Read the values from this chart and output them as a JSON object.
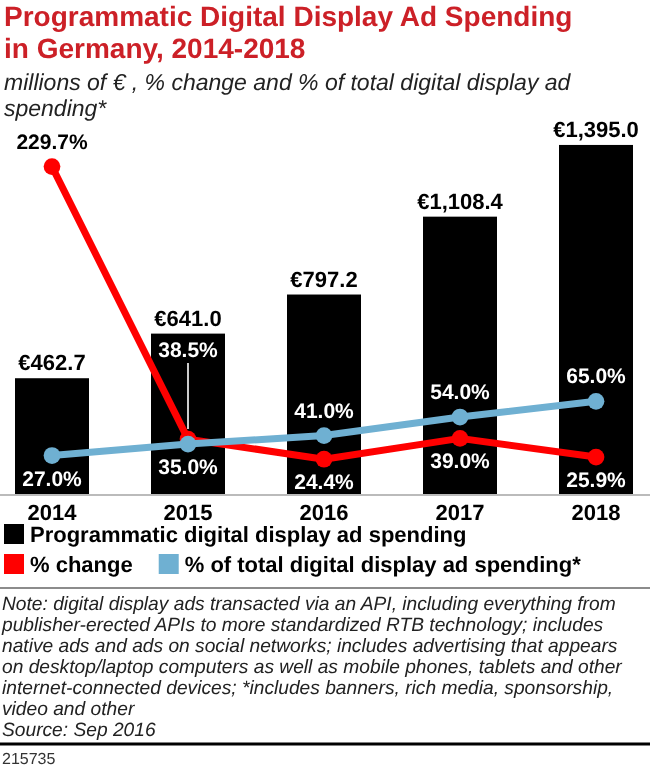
{
  "chart_data": {
    "type": "bar",
    "title": "Programmatic Digital Display Ad Spending in Germany, 2014-2018",
    "subtitle": "millions of € , % change and % of total digital display ad spending*",
    "categories": [
      "2014",
      "2015",
      "2016",
      "2017",
      "2018"
    ],
    "series": [
      {
        "name": "Programmatic digital display ad spending",
        "color": "#000000",
        "values": [
          462.7,
          641.0,
          797.2,
          1108.4,
          1395.0
        ],
        "value_labels": [
          "€462.7",
          "€641.0",
          "€797.2",
          "€1,108.4",
          "€1,395.0"
        ]
      },
      {
        "name": "% change",
        "type": "line",
        "axis": "y2",
        "color": "#ff0000",
        "values": [
          229.7,
          38.5,
          24.4,
          39.0,
          25.9
        ],
        "value_labels": [
          "229.7%",
          "38.5%",
          "24.4%",
          "39.0%",
          "25.9%"
        ]
      },
      {
        "name": "% of total digital display ad spending*",
        "type": "line",
        "axis": "y2",
        "color": "#6fb0d2",
        "values": [
          27.0,
          35.0,
          41.0,
          54.0,
          65.0
        ],
        "value_labels": [
          "27.0%",
          "35.0%",
          "41.0%",
          "54.0%",
          "65.0%"
        ]
      }
    ],
    "tick_labels": "x",
    "marker": "circle",
    "line_style": "solid",
    "legend": "bottom",
    "annotations": [
      "Note: digital display ads transacted via an API, including everything from publisher-erected APIs to more standardized RTB technology; includes native ads and ads on social networks; includes advertising that appears on desktop/laptop computers as well as mobile phones, tablets and other internet-connected devices; *includes banners, rich media, sponsorship, video and other",
      "Source: Sep 2016",
      "215735"
    ]
  }
}
